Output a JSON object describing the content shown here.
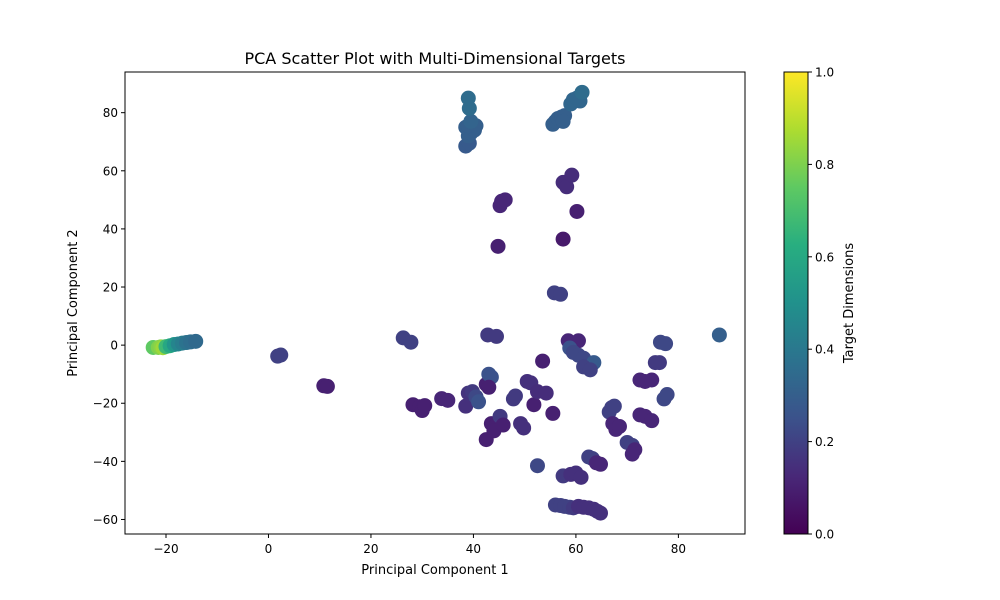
{
  "chart_data": {
    "type": "scatter",
    "title": "PCA Scatter Plot with Multi-Dimensional Targets",
    "xlabel": "Principal Component 1",
    "ylabel": "Principal Component 2",
    "xlim": [
      -28,
      93
    ],
    "ylim": [
      -65,
      94
    ],
    "xticks": [
      -20,
      0,
      20,
      40,
      60,
      80
    ],
    "yticks": [
      -60,
      -40,
      -20,
      0,
      20,
      40,
      60,
      80
    ],
    "grid": false,
    "colormap": "viridis",
    "colorbar": {
      "label": "Target Dimensions",
      "ticks": [
        0.0,
        0.2,
        0.4,
        0.6,
        0.8,
        1.0
      ],
      "range": [
        0.0,
        1.0
      ]
    },
    "points": [
      {
        "x": -22.5,
        "y": -0.8,
        "c": 0.75
      },
      {
        "x": -21.5,
        "y": -0.8,
        "c": 0.8
      },
      {
        "x": -21.0,
        "y": -0.6,
        "c": 0.82
      },
      {
        "x": -20.6,
        "y": -0.9,
        "c": 0.85
      },
      {
        "x": -20.0,
        "y": -0.5,
        "c": 0.68
      },
      {
        "x": -19.2,
        "y": -0.2,
        "c": 0.6
      },
      {
        "x": -18.4,
        "y": 0.2,
        "c": 0.52
      },
      {
        "x": -17.6,
        "y": 0.4,
        "c": 0.45
      },
      {
        "x": -16.8,
        "y": 0.7,
        "c": 0.42
      },
      {
        "x": -16.0,
        "y": 0.9,
        "c": 0.38
      },
      {
        "x": -15.2,
        "y": 1.1,
        "c": 0.36
      },
      {
        "x": -14.2,
        "y": 1.3,
        "c": 0.34
      },
      {
        "x": 1.8,
        "y": -3.8,
        "c": 0.2
      },
      {
        "x": 2.4,
        "y": -3.4,
        "c": 0.2
      },
      {
        "x": 10.8,
        "y": -14.0,
        "c": 0.1
      },
      {
        "x": 11.5,
        "y": -14.2,
        "c": 0.1
      },
      {
        "x": 26.3,
        "y": 2.5,
        "c": 0.2
      },
      {
        "x": 27.8,
        "y": 1.0,
        "c": 0.2
      },
      {
        "x": 28.2,
        "y": -20.5,
        "c": 0.1
      },
      {
        "x": 29.5,
        "y": -21.2,
        "c": 0.1
      },
      {
        "x": 30.0,
        "y": -22.5,
        "c": 0.1
      },
      {
        "x": 30.5,
        "y": -20.8,
        "c": 0.1
      },
      {
        "x": 33.8,
        "y": -18.4,
        "c": 0.12
      },
      {
        "x": 35.0,
        "y": -19.0,
        "c": 0.12
      },
      {
        "x": 38.5,
        "y": -21.0,
        "c": 0.15
      },
      {
        "x": 39.0,
        "y": -16.5,
        "c": 0.16
      },
      {
        "x": 39.8,
        "y": -16.0,
        "c": 0.18
      },
      {
        "x": 40.5,
        "y": -17.8,
        "c": 0.22
      },
      {
        "x": 41.0,
        "y": -19.5,
        "c": 0.25
      },
      {
        "x": 42.5,
        "y": -13.5,
        "c": 0.1
      },
      {
        "x": 43.0,
        "y": -10.0,
        "c": 0.25
      },
      {
        "x": 43.5,
        "y": -11.0,
        "c": 0.25
      },
      {
        "x": 43.0,
        "y": -14.5,
        "c": 0.1
      },
      {
        "x": 42.5,
        "y": -32.5,
        "c": 0.1
      },
      {
        "x": 43.5,
        "y": -27.0,
        "c": 0.1
      },
      {
        "x": 44.2,
        "y": -28.0,
        "c": 0.1
      },
      {
        "x": 44.8,
        "y": -26.5,
        "c": 0.1
      },
      {
        "x": 45.2,
        "y": -24.5,
        "c": 0.18
      },
      {
        "x": 44.0,
        "y": -29.5,
        "c": 0.1
      },
      {
        "x": 45.8,
        "y": -27.5,
        "c": 0.1
      },
      {
        "x": 42.8,
        "y": 3.5,
        "c": 0.18
      },
      {
        "x": 44.5,
        "y": 3.0,
        "c": 0.18
      },
      {
        "x": 44.8,
        "y": 34.0,
        "c": 0.1
      },
      {
        "x": 45.2,
        "y": 48.0,
        "c": 0.12
      },
      {
        "x": 45.5,
        "y": 49.5,
        "c": 0.12
      },
      {
        "x": 46.2,
        "y": 50.0,
        "c": 0.12
      },
      {
        "x": 47.8,
        "y": -18.5,
        "c": 0.18
      },
      {
        "x": 48.2,
        "y": -17.5,
        "c": 0.18
      },
      {
        "x": 49.2,
        "y": -27.0,
        "c": 0.15
      },
      {
        "x": 49.8,
        "y": -28.5,
        "c": 0.15
      },
      {
        "x": 50.5,
        "y": -12.5,
        "c": 0.15
      },
      {
        "x": 51.2,
        "y": -13.0,
        "c": 0.15
      },
      {
        "x": 51.8,
        "y": -20.5,
        "c": 0.1
      },
      {
        "x": 52.5,
        "y": -16.0,
        "c": 0.14
      },
      {
        "x": 53.5,
        "y": -5.5,
        "c": 0.1
      },
      {
        "x": 54.2,
        "y": -16.5,
        "c": 0.14
      },
      {
        "x": 52.5,
        "y": -41.5,
        "c": 0.22
      },
      {
        "x": 55.5,
        "y": -23.5,
        "c": 0.1
      },
      {
        "x": 55.8,
        "y": 18.0,
        "c": 0.2
      },
      {
        "x": 57.0,
        "y": 17.5,
        "c": 0.2
      },
      {
        "x": 57.5,
        "y": 36.5,
        "c": 0.08
      },
      {
        "x": 57.5,
        "y": 56.0,
        "c": 0.14
      },
      {
        "x": 58.2,
        "y": 54.5,
        "c": 0.14
      },
      {
        "x": 59.2,
        "y": 58.5,
        "c": 0.14
      },
      {
        "x": 60.2,
        "y": 46.0,
        "c": 0.1
      },
      {
        "x": 56.0,
        "y": -55.0,
        "c": 0.2
      },
      {
        "x": 57.0,
        "y": -55.2,
        "c": 0.2
      },
      {
        "x": 57.8,
        "y": -55.5,
        "c": 0.2
      },
      {
        "x": 58.8,
        "y": -55.8,
        "c": 0.2
      },
      {
        "x": 59.5,
        "y": -56.0,
        "c": 0.18
      },
      {
        "x": 60.5,
        "y": -55.5,
        "c": 0.15
      },
      {
        "x": 61.5,
        "y": -55.8,
        "c": 0.15
      },
      {
        "x": 62.5,
        "y": -56.0,
        "c": 0.15
      },
      {
        "x": 63.5,
        "y": -56.5,
        "c": 0.15
      },
      {
        "x": 64.2,
        "y": -57.2,
        "c": 0.15
      },
      {
        "x": 64.8,
        "y": -57.8,
        "c": 0.15
      },
      {
        "x": 57.5,
        "y": -45.0,
        "c": 0.18
      },
      {
        "x": 59.0,
        "y": -44.5,
        "c": 0.15
      },
      {
        "x": 60.0,
        "y": -44.0,
        "c": 0.15
      },
      {
        "x": 61.0,
        "y": -45.5,
        "c": 0.15
      },
      {
        "x": 62.5,
        "y": -38.5,
        "c": 0.2
      },
      {
        "x": 63.2,
        "y": -39.0,
        "c": 0.2
      },
      {
        "x": 64.0,
        "y": -40.5,
        "c": 0.12
      },
      {
        "x": 64.8,
        "y": -41.0,
        "c": 0.12
      },
      {
        "x": 58.5,
        "y": 1.5,
        "c": 0.12
      },
      {
        "x": 60.5,
        "y": 1.5,
        "c": 0.12
      },
      {
        "x": 58.8,
        "y": -1.0,
        "c": 0.25
      },
      {
        "x": 59.5,
        "y": -2.5,
        "c": 0.22
      },
      {
        "x": 60.5,
        "y": -3.5,
        "c": 0.22
      },
      {
        "x": 61.5,
        "y": -4.5,
        "c": 0.22
      },
      {
        "x": 63.5,
        "y": -6.0,
        "c": 0.28
      },
      {
        "x": 61.5,
        "y": -7.5,
        "c": 0.2
      },
      {
        "x": 62.8,
        "y": -8.5,
        "c": 0.2
      },
      {
        "x": 66.5,
        "y": -23.0,
        "c": 0.2
      },
      {
        "x": 67.0,
        "y": -21.5,
        "c": 0.2
      },
      {
        "x": 67.5,
        "y": -21.0,
        "c": 0.2
      },
      {
        "x": 67.2,
        "y": -27.0,
        "c": 0.12
      },
      {
        "x": 67.8,
        "y": -29.0,
        "c": 0.12
      },
      {
        "x": 68.5,
        "y": -28.0,
        "c": 0.12
      },
      {
        "x": 70.0,
        "y": -33.5,
        "c": 0.2
      },
      {
        "x": 71.0,
        "y": -34.5,
        "c": 0.2
      },
      {
        "x": 71.5,
        "y": -36.0,
        "c": 0.12
      },
      {
        "x": 71.0,
        "y": -37.5,
        "c": 0.12
      },
      {
        "x": 72.5,
        "y": -12.0,
        "c": 0.12
      },
      {
        "x": 73.5,
        "y": -12.5,
        "c": 0.12
      },
      {
        "x": 72.5,
        "y": -24.0,
        "c": 0.12
      },
      {
        "x": 73.5,
        "y": -24.5,
        "c": 0.12
      },
      {
        "x": 74.8,
        "y": -26.0,
        "c": 0.12
      },
      {
        "x": 74.8,
        "y": -12.0,
        "c": 0.12
      },
      {
        "x": 75.5,
        "y": -6.0,
        "c": 0.18
      },
      {
        "x": 76.3,
        "y": -6.0,
        "c": 0.18
      },
      {
        "x": 76.5,
        "y": 1.0,
        "c": 0.22
      },
      {
        "x": 77.5,
        "y": 0.5,
        "c": 0.22
      },
      {
        "x": 77.2,
        "y": -18.5,
        "c": 0.22
      },
      {
        "x": 77.8,
        "y": -17.0,
        "c": 0.22
      },
      {
        "x": 88.0,
        "y": 3.5,
        "c": 0.3
      },
      {
        "x": 38.5,
        "y": 68.5,
        "c": 0.28
      },
      {
        "x": 39.2,
        "y": 69.5,
        "c": 0.28
      },
      {
        "x": 39.0,
        "y": 72.0,
        "c": 0.3
      },
      {
        "x": 39.5,
        "y": 73.0,
        "c": 0.3
      },
      {
        "x": 40.2,
        "y": 74.0,
        "c": 0.3
      },
      {
        "x": 38.5,
        "y": 75.0,
        "c": 0.3
      },
      {
        "x": 39.0,
        "y": 75.5,
        "c": 0.3
      },
      {
        "x": 40.5,
        "y": 75.5,
        "c": 0.3
      },
      {
        "x": 39.5,
        "y": 77.0,
        "c": 0.32
      },
      {
        "x": 39.2,
        "y": 81.5,
        "c": 0.35
      },
      {
        "x": 39.0,
        "y": 85.0,
        "c": 0.35
      },
      {
        "x": 55.5,
        "y": 76.0,
        "c": 0.3
      },
      {
        "x": 56.0,
        "y": 77.0,
        "c": 0.3
      },
      {
        "x": 56.5,
        "y": 78.0,
        "c": 0.3
      },
      {
        "x": 57.2,
        "y": 78.5,
        "c": 0.3
      },
      {
        "x": 57.8,
        "y": 79.0,
        "c": 0.3
      },
      {
        "x": 57.5,
        "y": 77.0,
        "c": 0.3
      },
      {
        "x": 59.0,
        "y": 83.0,
        "c": 0.33
      },
      {
        "x": 59.5,
        "y": 84.5,
        "c": 0.33
      },
      {
        "x": 60.2,
        "y": 85.0,
        "c": 0.33
      },
      {
        "x": 60.8,
        "y": 84.0,
        "c": 0.33
      },
      {
        "x": 61.2,
        "y": 87.0,
        "c": 0.35
      }
    ]
  }
}
